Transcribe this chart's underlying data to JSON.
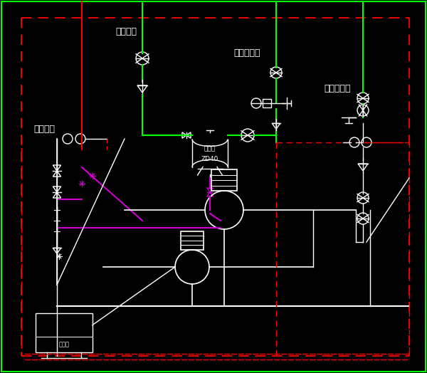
{
  "bg": "#000000",
  "W": "#ffffff",
  "G": "#00ff00",
  "R": "#ff0000",
  "M": "#cc00cc",
  "figsize": [
    6.0,
    5.24
  ],
  "dpi": 100,
  "labels": {
    "t1": "高区回水",
    "t2": "高区供水",
    "t3": "接回水外网",
    "t4": "接供水外网",
    "t5": "阻断器",
    "t6": "ZD40",
    "t7": "控制柜"
  }
}
